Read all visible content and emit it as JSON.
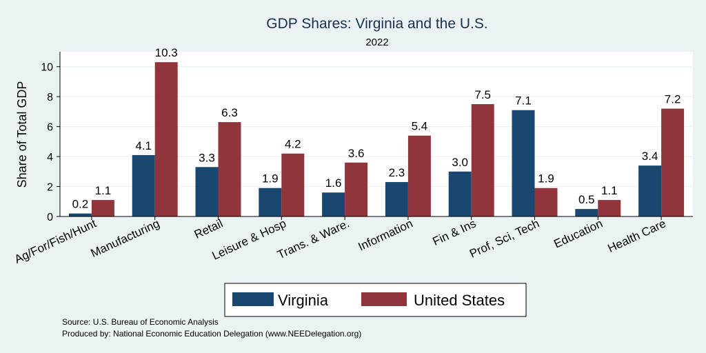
{
  "chart_data": {
    "type": "bar",
    "title": "GDP Shares: Virginia and the U.S.",
    "subtitle": "2022",
    "xlabel": "",
    "ylabel": "Share of Total GDP",
    "ylim": [
      0,
      11
    ],
    "yticks": [
      0,
      2,
      4,
      6,
      8,
      10
    ],
    "grid": true,
    "legend_position": "bottom",
    "categories": [
      "Ag/For/Fish/Hunt",
      "Manufacturing",
      "Retail",
      "Leisure & Hosp",
      "Trans. & Ware.",
      "Information",
      "Fin & Ins",
      "Prof, Sci, Tech",
      "Education",
      "Health Care"
    ],
    "series": [
      {
        "name": "Virginia",
        "color": "#1a476f",
        "values": [
          0.2,
          4.1,
          3.3,
          1.9,
          1.6,
          2.3,
          3.0,
          7.1,
          0.5,
          3.4
        ],
        "labels": [
          "0.2",
          "4.1",
          "3.3",
          "1.9",
          "1.6",
          "2.3",
          "3.0",
          "7.1",
          "0.5",
          "3.4"
        ]
      },
      {
        "name": "United States",
        "color": "#90353b",
        "values": [
          1.1,
          10.3,
          6.3,
          4.2,
          3.6,
          5.4,
          7.5,
          1.9,
          1.1,
          7.2
        ],
        "labels": [
          "1.1",
          "10.3",
          "6.3",
          "4.2",
          "3.6",
          "5.4",
          "7.5",
          "1.9",
          "1.1",
          "7.2"
        ]
      }
    ]
  },
  "notes": {
    "source": "Source: U.S. Bureau of Economic Analysis",
    "produced_by": "Produced by: National Economic Education Delegation (www.NEEDelegation.org)"
  }
}
